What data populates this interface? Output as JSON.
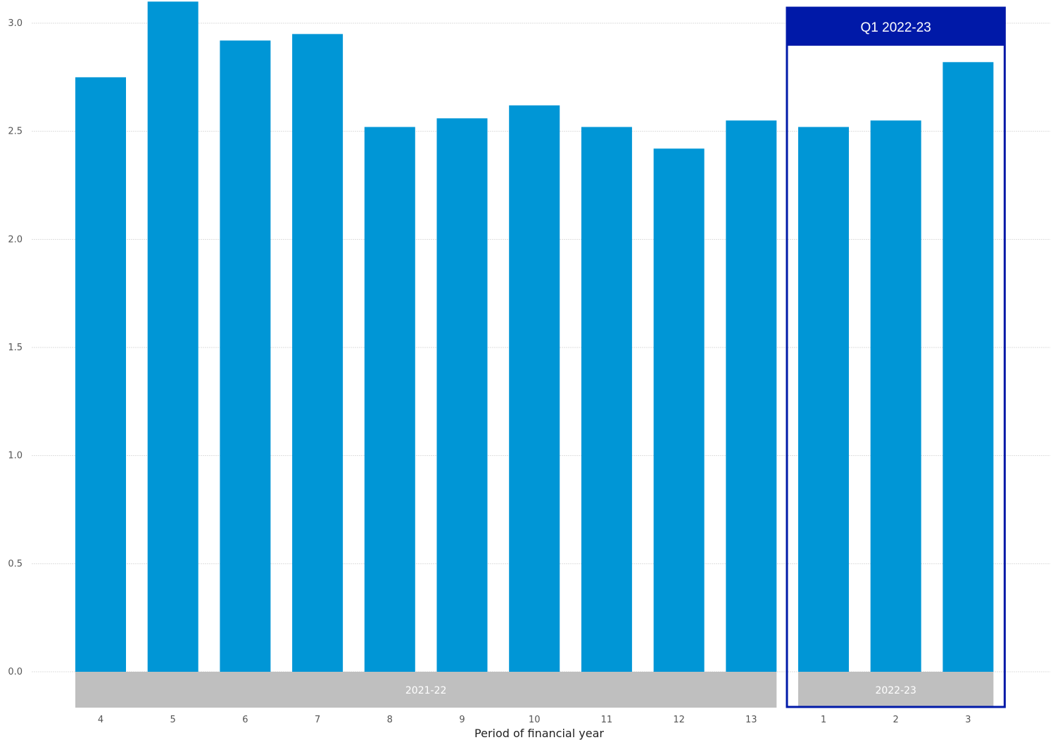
{
  "chart_data": {
    "type": "bar",
    "categories": [
      "4",
      "5",
      "6",
      "7",
      "8",
      "9",
      "10",
      "11",
      "12",
      "13",
      "1",
      "2",
      "3"
    ],
    "values": [
      2.75,
      3.1,
      2.92,
      2.95,
      2.52,
      2.56,
      2.62,
      2.52,
      2.42,
      2.55,
      2.52,
      2.55,
      2.82
    ],
    "title": "",
    "xlabel": "Period of financial year",
    "ylabel": "",
    "ylim": [
      0,
      3.0
    ],
    "yticks": [
      "0.0",
      "0.5",
      "1.0",
      "1.5",
      "2.0",
      "2.5",
      "3.0"
    ],
    "ytick_values": [
      0,
      0.5,
      1.0,
      1.5,
      2.0,
      2.5,
      3.0
    ],
    "grid": true,
    "legend": "none",
    "groups": [
      {
        "label": "2021-22",
        "first_index": 0,
        "last_index": 9
      },
      {
        "label": "2022-23",
        "first_index": 10,
        "last_index": 12
      }
    ],
    "highlight": {
      "label": "Q1 2022-23",
      "first_index": 10,
      "last_index": 12
    },
    "colors": {
      "bar": "#0096d6",
      "group_band": "#bfbfbf",
      "highlight": "#0019a8",
      "grid": "#dddddd"
    }
  }
}
